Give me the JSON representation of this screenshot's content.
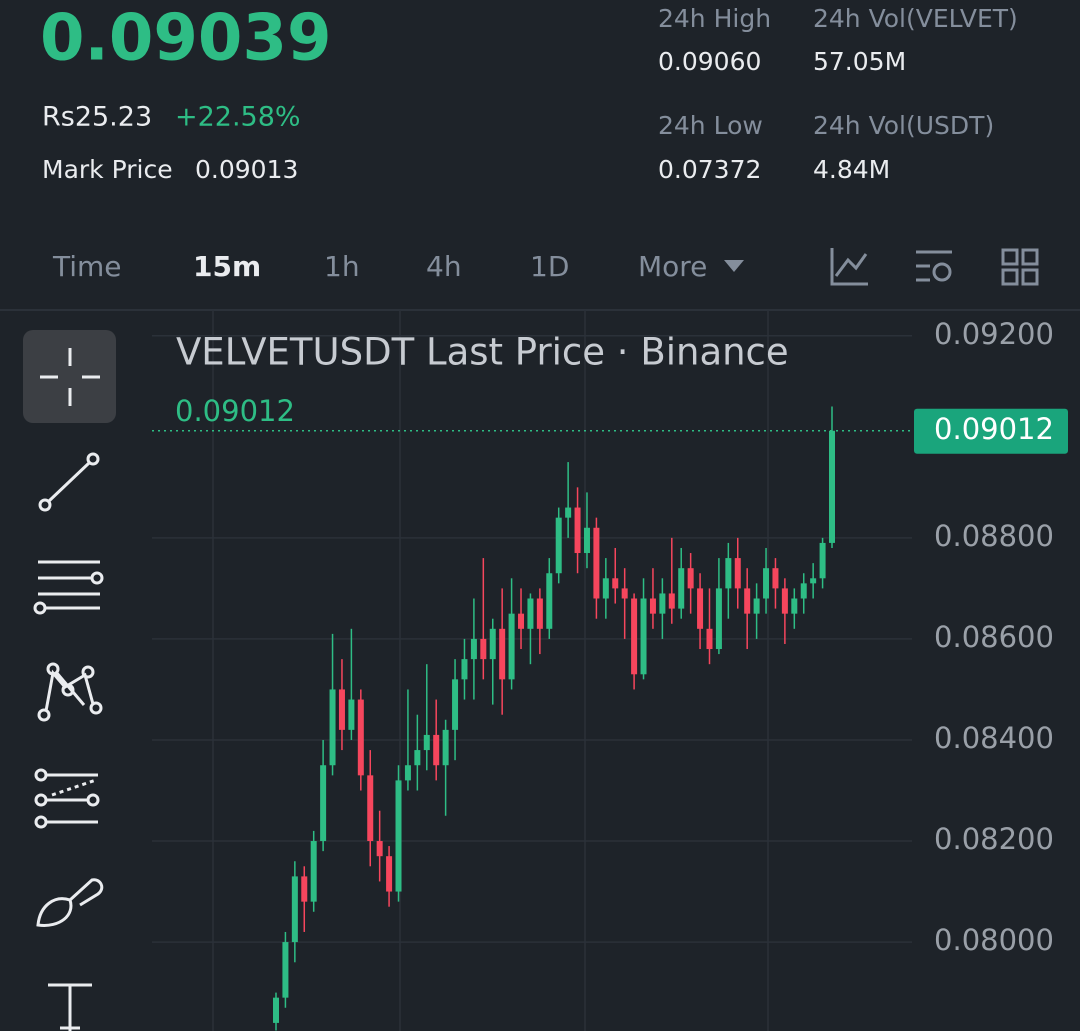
{
  "header": {
    "price": "0.09039",
    "local_price": "Rs25.23",
    "change": "+22.58%",
    "mark_price_label": "Mark Price",
    "mark_price": "0.09013",
    "stats": [
      {
        "label": "24h High",
        "value": "0.09060"
      },
      {
        "label": "24h Vol(VELVET)",
        "value": "57.05M"
      },
      {
        "label": "24h Low",
        "value": "0.07372"
      },
      {
        "label": "24h Vol(USDT)",
        "value": "4.84M"
      }
    ]
  },
  "tabs": [
    "Time",
    "15m",
    "1h",
    "4h",
    "1D",
    "More"
  ],
  "chart_data": {
    "type": "candlestick",
    "title": "VELVETUSDT Last Price · Binance",
    "last_price": 0.09012,
    "up_color": "#2ebd85",
    "down_color": "#f6465d",
    "ylim": [
      0.07824,
      0.09251
    ],
    "yticks": [
      {
        "value": 0.092,
        "label": "0.09200"
      },
      {
        "value": 0.088,
        "label": "0.08800"
      },
      {
        "value": 0.086,
        "label": "0.08600"
      },
      {
        "value": 0.084,
        "label": "0.08400"
      },
      {
        "value": 0.082,
        "label": "0.08200"
      },
      {
        "value": 0.08,
        "label": "0.08000"
      }
    ],
    "grid": true,
    "series": {
      "open": [
        0.0784,
        0.0789,
        0.08,
        0.0813,
        0.0808,
        0.082,
        0.0835,
        0.085,
        0.0842,
        0.0848,
        0.0833,
        0.082,
        0.0817,
        0.081,
        0.0832,
        0.0835,
        0.0838,
        0.0841,
        0.0835,
        0.0842,
        0.0852,
        0.0856,
        0.086,
        0.0856,
        0.0862,
        0.0852,
        0.0865,
        0.0862,
        0.0868,
        0.0862,
        0.0873,
        0.0884,
        0.0886,
        0.0877,
        0.0882,
        0.0868,
        0.0872,
        0.087,
        0.0868,
        0.0853,
        0.0868,
        0.0865,
        0.0869,
        0.0866,
        0.0874,
        0.087,
        0.0862,
        0.0858,
        0.087,
        0.0876,
        0.087,
        0.0865,
        0.0868,
        0.0874,
        0.087,
        0.0865,
        0.0868,
        0.0871,
        0.0872,
        0.0879
      ],
      "high": [
        0.079,
        0.0802,
        0.0816,
        0.0815,
        0.0822,
        0.084,
        0.0861,
        0.0856,
        0.0862,
        0.085,
        0.0838,
        0.0826,
        0.0819,
        0.0835,
        0.085,
        0.0845,
        0.0855,
        0.0848,
        0.0844,
        0.0856,
        0.086,
        0.0868,
        0.0876,
        0.0864,
        0.087,
        0.0872,
        0.087,
        0.0869,
        0.087,
        0.0876,
        0.0886,
        0.0895,
        0.089,
        0.0889,
        0.0884,
        0.0876,
        0.0878,
        0.0874,
        0.0869,
        0.0872,
        0.0874,
        0.0872,
        0.088,
        0.0878,
        0.0877,
        0.0873,
        0.087,
        0.0876,
        0.0879,
        0.088,
        0.0874,
        0.0871,
        0.0878,
        0.0876,
        0.0872,
        0.087,
        0.0873,
        0.0875,
        0.088,
        0.0906
      ],
      "low": [
        0.07825,
        0.0787,
        0.0796,
        0.0802,
        0.0806,
        0.0818,
        0.0833,
        0.0838,
        0.084,
        0.083,
        0.0815,
        0.0812,
        0.0807,
        0.0808,
        0.083,
        0.083,
        0.0834,
        0.0832,
        0.0825,
        0.0836,
        0.0848,
        0.0848,
        0.0852,
        0.0847,
        0.0845,
        0.085,
        0.0858,
        0.0855,
        0.0857,
        0.086,
        0.0871,
        0.088,
        0.0873,
        0.0874,
        0.0864,
        0.0864,
        0.0867,
        0.086,
        0.085,
        0.0852,
        0.0862,
        0.086,
        0.0863,
        0.0864,
        0.0865,
        0.0858,
        0.0855,
        0.0857,
        0.0864,
        0.0866,
        0.0858,
        0.086,
        0.0865,
        0.0866,
        0.0859,
        0.0862,
        0.0865,
        0.0868,
        0.087,
        0.0878
      ],
      "close": [
        0.0789,
        0.08,
        0.0813,
        0.0808,
        0.082,
        0.0835,
        0.085,
        0.0842,
        0.0848,
        0.0833,
        0.082,
        0.0817,
        0.081,
        0.0832,
        0.0835,
        0.0838,
        0.0841,
        0.0835,
        0.0842,
        0.0852,
        0.0856,
        0.086,
        0.0856,
        0.0862,
        0.0852,
        0.0865,
        0.0862,
        0.0868,
        0.0862,
        0.0873,
        0.0884,
        0.0886,
        0.0877,
        0.0882,
        0.0868,
        0.0872,
        0.087,
        0.0868,
        0.0853,
        0.0868,
        0.0865,
        0.0869,
        0.0866,
        0.0874,
        0.087,
        0.0862,
        0.0858,
        0.087,
        0.0876,
        0.087,
        0.0865,
        0.0868,
        0.0874,
        0.087,
        0.0865,
        0.0868,
        0.0871,
        0.0872,
        0.0879,
        0.09012
      ]
    }
  }
}
